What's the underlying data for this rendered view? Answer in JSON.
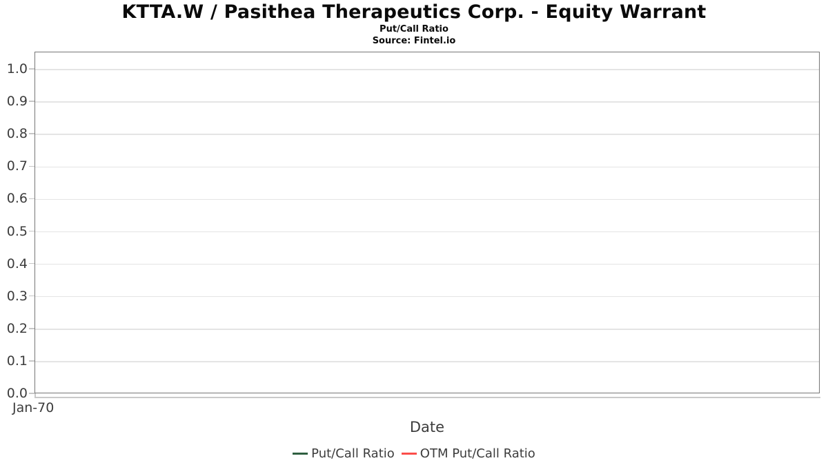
{
  "header": {
    "title": "KTTA.W / Pasithea Therapeutics Corp. - Equity Warrant",
    "subtitle": "Put/Call Ratio",
    "source": "Source: Fintel.io"
  },
  "chart_data": {
    "type": "line",
    "title": "KTTA.W / Pasithea Therapeutics Corp. - Equity Warrant",
    "subtitle": "Put/Call Ratio",
    "source": "Source: Fintel.io",
    "xlabel": "Date",
    "ylabel": "",
    "ylim": [
      0.0,
      1.053
    ],
    "yticks": [
      0.0,
      0.1,
      0.2,
      0.3,
      0.4,
      0.5,
      0.6,
      0.7,
      0.8,
      0.9,
      1.0
    ],
    "ytick_labels": [
      "0.0",
      "0.1",
      "0.2",
      "0.3",
      "0.4",
      "0.5",
      "0.6",
      "0.7",
      "0.8",
      "0.9",
      "1.0"
    ],
    "xtick_labels": [
      "Jan-70"
    ],
    "grid": "horizontal",
    "legend_position": "bottom",
    "series": [
      {
        "name": "Put/Call Ratio",
        "color": "#2e5f40",
        "x": [],
        "values": []
      },
      {
        "name": "OTM Put/Call Ratio",
        "color": "#fb4d4a",
        "x": [],
        "values": []
      }
    ],
    "note": "plot area is empty - no data points rendered"
  },
  "colors": {
    "plot_border": "#757575",
    "gridline": "#e4e4e4",
    "tick": "#c6c6c6",
    "axis_line": "#c9c9c9",
    "label_text": "#3c3c3c",
    "title_text": "#0a0a0a",
    "series_put_call": "#2e5f40",
    "series_otm_put_call": "#fb4d4a"
  }
}
